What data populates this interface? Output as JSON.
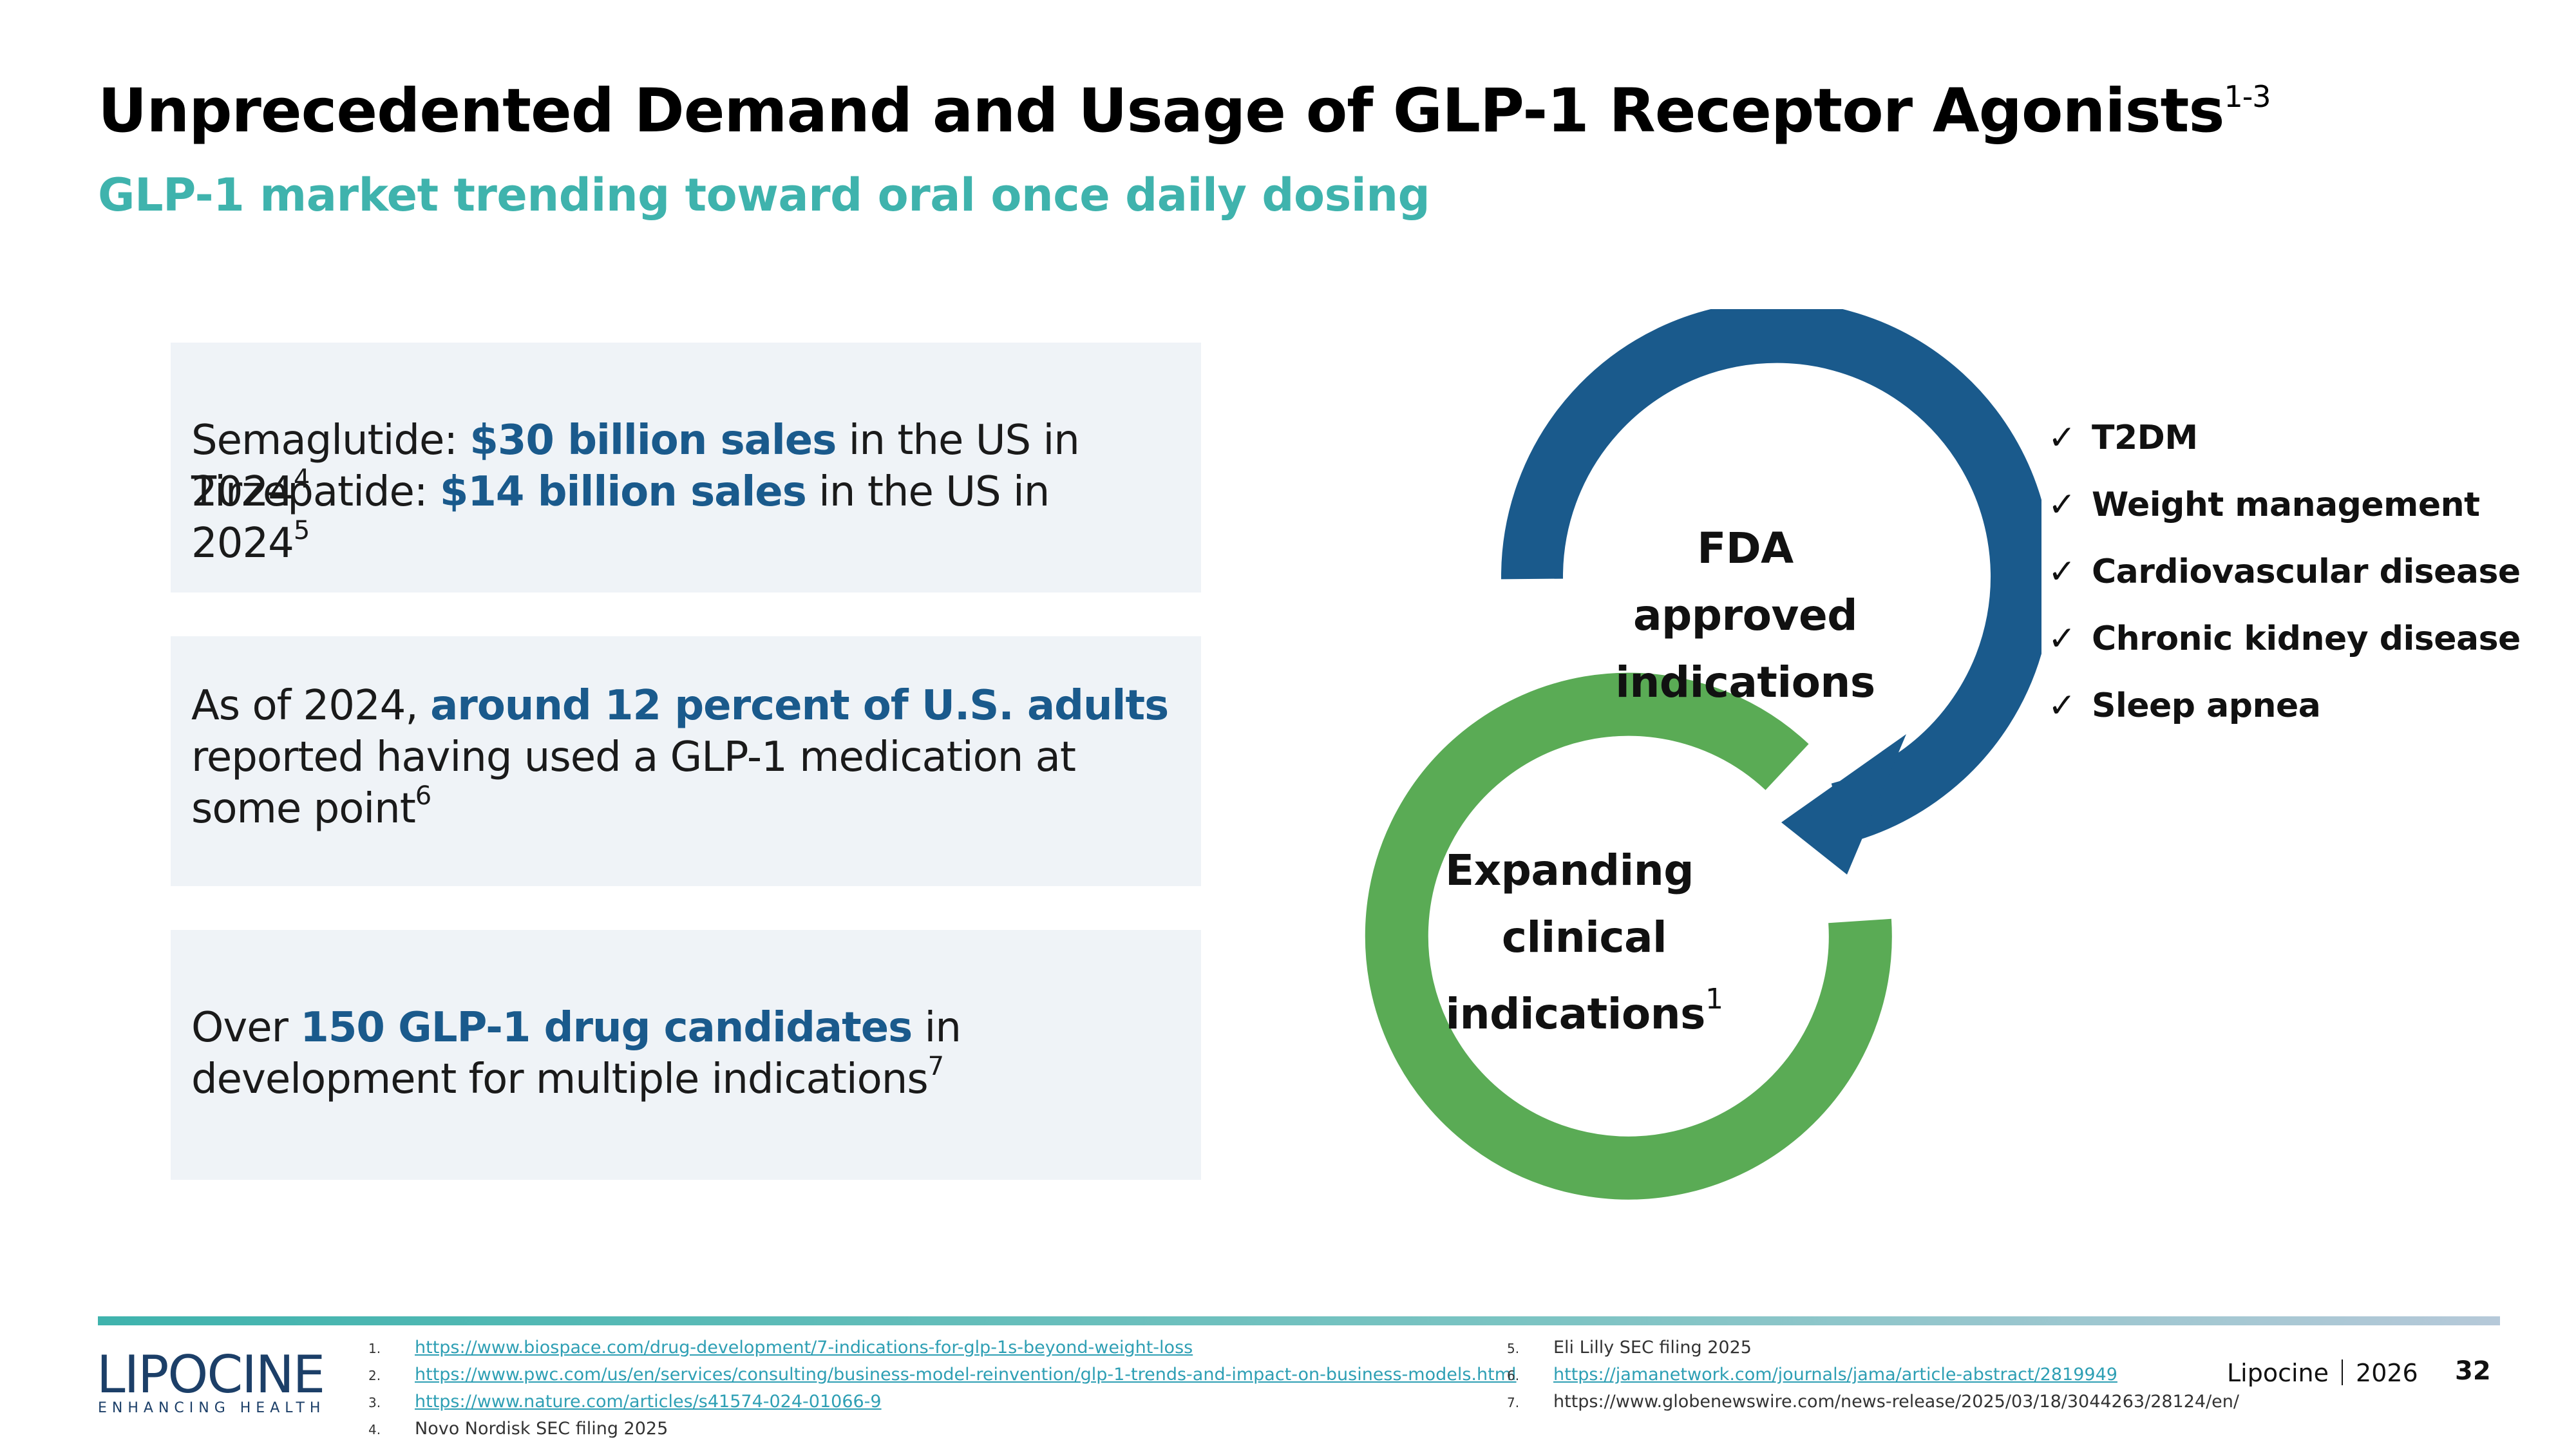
{
  "header": {
    "title": "Unprecedented Demand and Usage of GLP-1 Receptor Agonists",
    "title_superscript": "1-3",
    "subtitle": "GLP-1 market trending toward oral once daily dosing"
  },
  "cards": [
    {
      "lines": [
        {
          "pre": "Semaglutide: ",
          "bold": "$30 billion sales",
          "post": " in the US in 2024",
          "sup": "4"
        },
        {
          "pre": "Tirzepatide: ",
          "bold": "$14 billion sales",
          "post": " in the US in 2024",
          "sup": "5"
        }
      ]
    },
    {
      "pre": "As of 2024, ",
      "bold": "around 12 percent of U.S. adults",
      "post": " reported having used a GLP-1 medication at some point",
      "sup": "6"
    },
    {
      "pre": "Over ",
      "bold": "150 GLP-1 drug candidates",
      "post": " in development for multiple indications",
      "sup": "7"
    }
  ],
  "diagram": {
    "blue_label_line1": "FDA approved",
    "blue_label_line2": "indications",
    "green_label_line1": "Expanding",
    "green_label_line2": "clinical",
    "green_label_line3": "indications",
    "green_label_sup": "1",
    "colors": {
      "blue": "#1a5a8c",
      "green": "#5aab55"
    }
  },
  "checklist": {
    "check_glyph": "✓",
    "items": [
      "T2DM",
      "Weight management",
      "Cardiovascular disease",
      "Chronic kidney disease",
      "Sleep apnea"
    ]
  },
  "footer": {
    "logo_word": "LIPOCINE",
    "logo_tagline": "ENHANCING HEALTH",
    "references_left": [
      {
        "num": "1.",
        "text": "https://www.biospace.com/drug-development/7-indications-for-glp-1s-beyond-weight-loss",
        "link": true
      },
      {
        "num": "2.",
        "text": "https://www.pwc.com/us/en/services/consulting/business-model-reinvention/glp-1-trends-and-impact-on-business-models.html",
        "link": true
      },
      {
        "num": "3.",
        "text": "https://www.nature.com/articles/s41574-024-01066-9",
        "link": true
      },
      {
        "num": "4.",
        "text": "Novo Nordisk SEC filing 2025",
        "link": false
      }
    ],
    "references_right": [
      {
        "num": "5.",
        "text": "Eli Lilly SEC filing 2025",
        "link": false
      },
      {
        "num": "6.",
        "text": "https://jamanetwork.com/journals/jama/article-abstract/2819949",
        "link": true
      },
      {
        "num": "7.",
        "text": "https://www.globenewswire.com/news-release/2025/03/18/3044263/28124/en/",
        "link": false
      }
    ],
    "company": "Lipocine",
    "year": "2026",
    "page_number": "32"
  }
}
